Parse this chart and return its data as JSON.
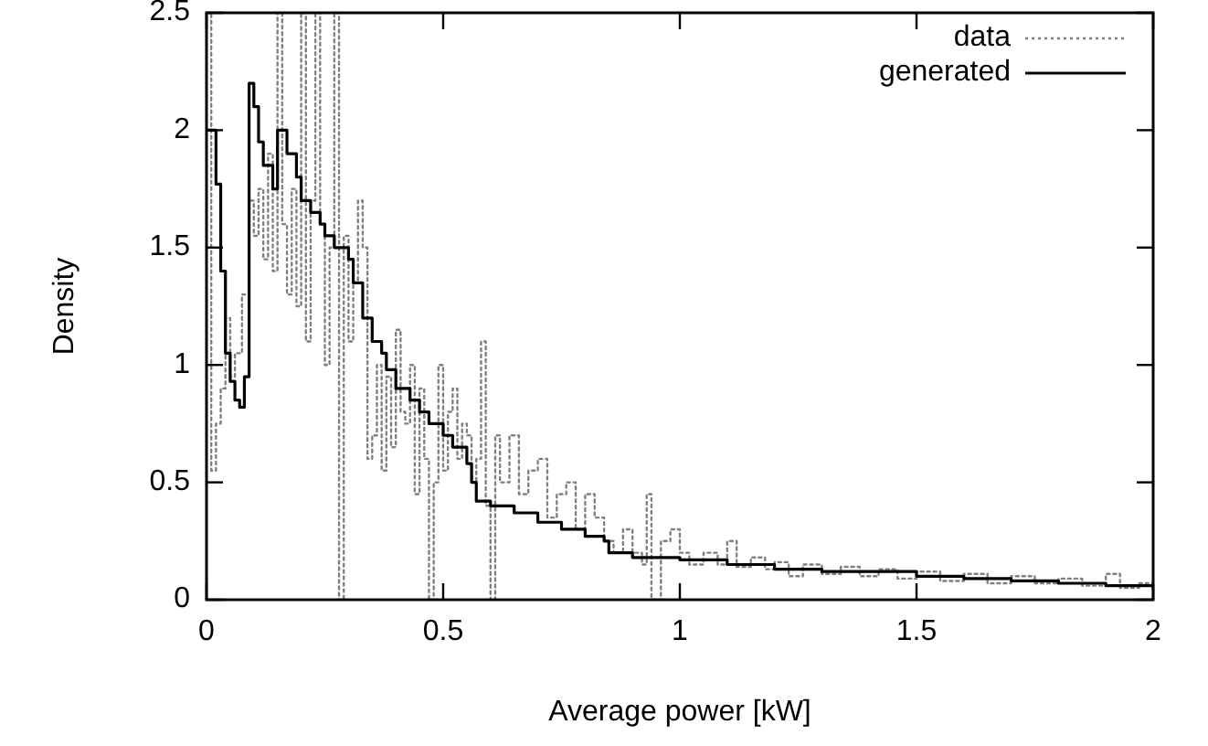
{
  "chart_data": {
    "type": "step",
    "xlabel": "Average power [kW]",
    "ylabel": "Density",
    "xlim": [
      0,
      2
    ],
    "xticks": [
      0,
      0.5,
      1,
      1.5,
      2
    ],
    "ylim": [
      0,
      2.5
    ],
    "yticks": [
      0,
      0.5,
      1,
      1.5,
      2,
      2.5
    ],
    "grid": false,
    "legend": "top right",
    "marker": "none",
    "series": [
      {
        "name": "data",
        "color": "#808080",
        "line_style": "dotted",
        "x": [
          0,
          0.01,
          0.02,
          0.03,
          0.04,
          0.05,
          0.06,
          0.075,
          0.09,
          0.1,
          0.11,
          0.12,
          0.13,
          0.14,
          0.15,
          0.16,
          0.17,
          0.18,
          0.19,
          0.2,
          0.21,
          0.22,
          0.23,
          0.24,
          0.25,
          0.26,
          0.27,
          0.28,
          0.29,
          0.3,
          0.31,
          0.32,
          0.33,
          0.34,
          0.35,
          0.36,
          0.37,
          0.38,
          0.39,
          0.4,
          0.41,
          0.42,
          0.43,
          0.44,
          0.45,
          0.46,
          0.47,
          0.48,
          0.49,
          0.5,
          0.51,
          0.52,
          0.53,
          0.54,
          0.55,
          0.56,
          0.57,
          0.58,
          0.59,
          0.6,
          0.61,
          0.62,
          0.64,
          0.66,
          0.68,
          0.7,
          0.72,
          0.74,
          0.76,
          0.78,
          0.8,
          0.82,
          0.84,
          0.86,
          0.88,
          0.9,
          0.92,
          0.93,
          0.94,
          0.96,
          0.98,
          1.0,
          1.02,
          1.05,
          1.08,
          1.1,
          1.12,
          1.15,
          1.18,
          1.2,
          1.23,
          1.26,
          1.3,
          1.34,
          1.38,
          1.42,
          1.46,
          1.5,
          1.55,
          1.6,
          1.65,
          1.7,
          1.75,
          1.8,
          1.85,
          1.9,
          1.93,
          1.97,
          2.0
        ],
        "values": [
          2.5,
          0.55,
          0.75,
          0.9,
          1.2,
          0.95,
          1.05,
          1.3,
          1.7,
          1.55,
          1.75,
          1.45,
          1.9,
          1.4,
          2.5,
          1.6,
          1.3,
          1.75,
          1.25,
          2.5,
          1.1,
          1.7,
          2.5,
          1.6,
          1.0,
          1.5,
          2.5,
          0,
          1.55,
          1.1,
          1.35,
          1.7,
          1.5,
          0.6,
          0.7,
          1.0,
          0.55,
          0.95,
          0.65,
          1.15,
          0.8,
          0.75,
          1.0,
          0.45,
          0.9,
          0.6,
          0,
          0.5,
          1.0,
          0.55,
          0.8,
          0.9,
          0.6,
          0.75,
          0.7,
          0.5,
          0.6,
          1.1,
          0.4,
          0,
          0.7,
          0.5,
          0.7,
          0.45,
          0.55,
          0.6,
          0.35,
          0.45,
          0.5,
          0.3,
          0.45,
          0.35,
          0.25,
          0.2,
          0.3,
          0.2,
          0.15,
          0.45,
          0,
          0.25,
          0.3,
          0.2,
          0.15,
          0.2,
          0.15,
          0.25,
          0.14,
          0.18,
          0.13,
          0.16,
          0.1,
          0.15,
          0.11,
          0.14,
          0.1,
          0.13,
          0.09,
          0.12,
          0.08,
          0.11,
          0.07,
          0.1,
          0.07,
          0.09,
          0.06,
          0.11,
          0.05,
          0.07,
          0.05
        ]
      },
      {
        "name": "generated",
        "color": "#000000",
        "line_style": "solid",
        "x": [
          0,
          0.02,
          0.03,
          0.04,
          0.05,
          0.06,
          0.07,
          0.08,
          0.09,
          0.1,
          0.11,
          0.12,
          0.14,
          0.15,
          0.17,
          0.19,
          0.2,
          0.22,
          0.24,
          0.25,
          0.27,
          0.3,
          0.31,
          0.33,
          0.35,
          0.37,
          0.38,
          0.4,
          0.43,
          0.45,
          0.47,
          0.5,
          0.52,
          0.55,
          0.56,
          0.57,
          0.6,
          0.65,
          0.7,
          0.75,
          0.8,
          0.84,
          0.85,
          0.9,
          1.0,
          1.1,
          1.2,
          1.3,
          1.4,
          1.5,
          1.6,
          1.7,
          1.8,
          1.9,
          2.0
        ],
        "values": [
          2.0,
          1.77,
          1.4,
          1.05,
          0.93,
          0.85,
          0.82,
          0.95,
          2.2,
          2.1,
          1.95,
          1.85,
          1.75,
          2.0,
          1.9,
          1.8,
          1.7,
          1.65,
          1.6,
          1.55,
          1.5,
          1.45,
          1.35,
          1.2,
          1.1,
          1.05,
          0.98,
          0.9,
          0.85,
          0.8,
          0.75,
          0.7,
          0.65,
          0.58,
          0.5,
          0.42,
          0.4,
          0.37,
          0.33,
          0.3,
          0.27,
          0.25,
          0.2,
          0.18,
          0.17,
          0.15,
          0.13,
          0.12,
          0.12,
          0.1,
          0.09,
          0.08,
          0.07,
          0.06,
          0.05
        ]
      }
    ]
  }
}
